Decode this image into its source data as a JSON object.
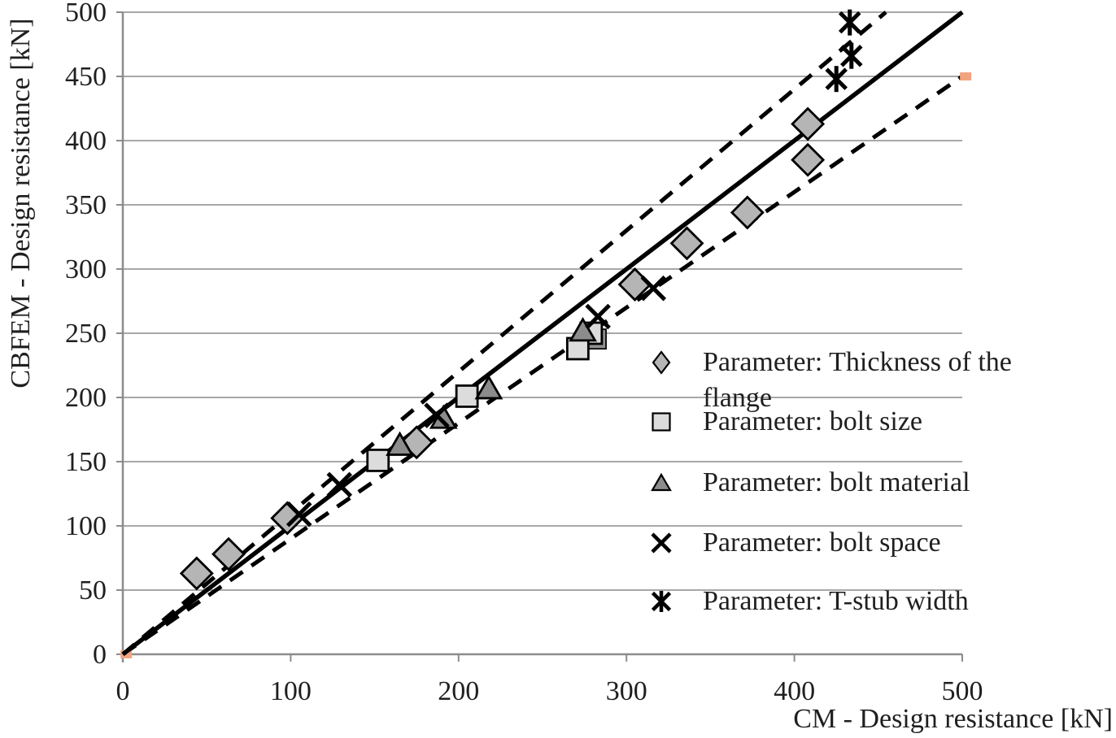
{
  "chart_data": {
    "type": "scatter",
    "title": "",
    "xlabel": "CM - Design resistance [kN]",
    "ylabel": "CBFEM - Design resistance [kN]",
    "xlim": [
      0,
      500
    ],
    "ylim": [
      0,
      500
    ],
    "x_ticks": [
      0,
      100,
      200,
      300,
      400,
      500
    ],
    "y_ticks": [
      0,
      50,
      100,
      150,
      200,
      250,
      300,
      350,
      400,
      450,
      500
    ],
    "grid": "horizontal",
    "grid_color": "#a8a8a8",
    "axis_color": "#8c8c8c",
    "line_color": "#000000",
    "legend_position": "inside-right",
    "series": [
      {
        "name": "Parameter: Thickness of the flange",
        "marker": "diamond",
        "fill": "#b5b5b5",
        "points": [
          [
            44,
            63
          ],
          [
            63,
            78
          ],
          [
            98,
            106
          ],
          [
            175,
            165
          ],
          [
            305,
            288
          ],
          [
            336,
            320
          ],
          [
            372,
            344
          ],
          [
            408,
            385
          ],
          [
            408,
            413
          ]
        ]
      },
      {
        "name": "Parameter: bolt size",
        "marker": "square",
        "fill": "#dcdcdc",
        "points": [
          [
            152,
            151
          ],
          [
            205,
            201
          ],
          [
            279,
            250
          ],
          [
            271,
            238
          ]
        ]
      },
      {
        "name": "Parameter: bolt material",
        "marker": "triangle",
        "fill": "#8c8c8c",
        "points": [
          [
            165,
            163
          ],
          [
            191,
            184
          ],
          [
            218,
            207
          ],
          [
            274,
            252
          ]
        ]
      },
      {
        "name": "Parameter: bolt space",
        "marker": "x",
        "fill": "#000000",
        "points": [
          [
            105,
            109
          ],
          [
            129,
            132
          ],
          [
            187,
            186
          ],
          [
            283,
            263
          ],
          [
            316,
            285
          ]
        ]
      },
      {
        "name": "Parameter: T-stub width",
        "marker": "asterisk",
        "fill": "#000000",
        "points": [
          [
            425,
            448
          ],
          [
            434,
            466
          ],
          [
            433,
            492
          ]
        ]
      }
    ],
    "occluded_marker": {
      "marker": "square",
      "point": [
        282,
        245.5
      ],
      "fill": "#909090",
      "series_index": 1,
      "insert_after_point_index": 0
    },
    "reference_lines": [
      {
        "name": "minus-10-percent",
        "style": "dashed",
        "from": [
          0,
          0
        ],
        "to": [
          500,
          450
        ],
        "endpoint_marker_color": "#f2a47f",
        "endpoint_markers": [
          [
            2,
            0
          ],
          [
            502,
            450
          ]
        ]
      },
      {
        "name": "plus-10-percent",
        "style": "dashed",
        "from": [
          0,
          0
        ],
        "to": [
          454.5,
          500
        ]
      },
      {
        "name": "equality",
        "style": "solid",
        "from": [
          0,
          0
        ],
        "to": [
          500,
          500
        ]
      }
    ]
  },
  "legend": {
    "items": [
      {
        "marker": "diamond",
        "label": "Parameter: Thickness of the\nflange"
      },
      {
        "marker": "square",
        "label": "Parameter: bolt size"
      },
      {
        "marker": "triangle",
        "label": "Parameter: bolt material"
      },
      {
        "marker": "x",
        "label": "Parameter: bolt space"
      },
      {
        "marker": "asterisk",
        "label": "Parameter: T-stub width"
      }
    ]
  }
}
